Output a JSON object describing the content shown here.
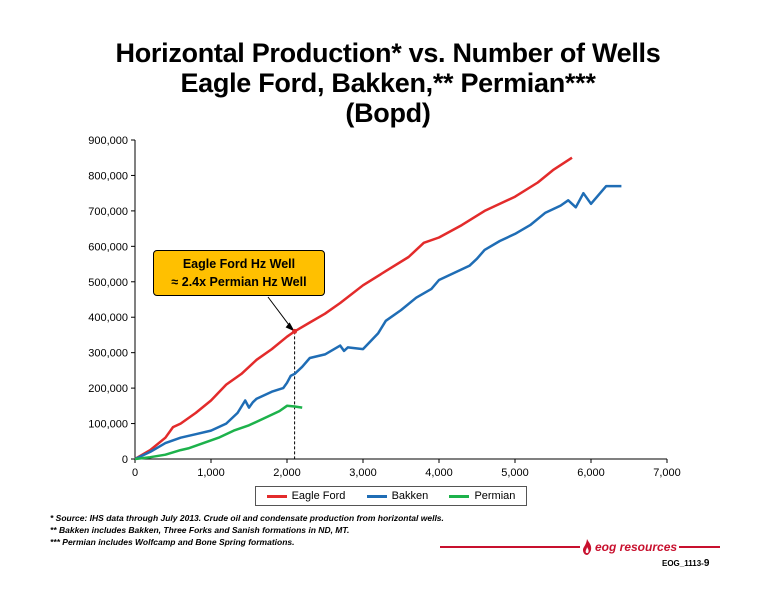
{
  "title": {
    "line1": "Horizontal Production* vs. Number of Wells",
    "line2": "Eagle Ford, Bakken,** Permian***",
    "line3": "(Bopd)"
  },
  "callout": {
    "line1": "Eagle Ford Hz Well",
    "line2": "≈ 2.4x Permian Hz Well"
  },
  "footnotes": [
    "* Source: IHS data through July 2013. Crude oil and condensate production from horizontal wells.",
    "** Bakken includes Bakken, Three Forks and Sanish formations in ND, MT.",
    "*** Permian includes Wolfcamp and Bone Spring formations."
  ],
  "logo": {
    "text": "eog resources",
    "icon": "flame-icon"
  },
  "doc_code": {
    "code": "EOG_1113-",
    "page": "9"
  },
  "chart_data": {
    "type": "line",
    "xlim": [
      0,
      7000
    ],
    "ylim": [
      0,
      900000
    ],
    "x_ticks": [
      0,
      1000,
      2000,
      3000,
      4000,
      5000,
      6000,
      7000
    ],
    "x_tick_labels": [
      "0",
      "1,000",
      "2,000",
      "3,000",
      "4,000",
      "5,000",
      "6,000",
      "7,000"
    ],
    "y_ticks": [
      0,
      100000,
      200000,
      300000,
      400000,
      500000,
      600000,
      700000,
      800000,
      900000
    ],
    "y_tick_labels": [
      "0",
      "100,000",
      "200,000",
      "300,000",
      "400,000",
      "500,000",
      "600,000",
      "700,000",
      "800,000",
      "900,000"
    ],
    "grid": false,
    "legend_position": "bottom",
    "reference_line_x": 2100,
    "highlight_point": {
      "x": 2100,
      "y": 360000
    },
    "series": [
      {
        "name": "Eagle Ford",
        "color": "#e32b2b",
        "x": [
          0,
          200,
          400,
          500,
          600,
          800,
          1000,
          1200,
          1400,
          1600,
          1800,
          2000,
          2100,
          2300,
          2500,
          2700,
          3000,
          3300,
          3600,
          3800,
          4000,
          4300,
          4600,
          5000,
          5300,
          5500,
          5750
        ],
        "y": [
          0,
          25000,
          60000,
          90000,
          100000,
          130000,
          165000,
          210000,
          240000,
          280000,
          310000,
          345000,
          360000,
          385000,
          410000,
          440000,
          490000,
          530000,
          570000,
          610000,
          625000,
          660000,
          700000,
          740000,
          780000,
          815000,
          850000
        ]
      },
      {
        "name": "Bakken",
        "color": "#1f6db5",
        "x": [
          0,
          200,
          400,
          600,
          800,
          1000,
          1200,
          1350,
          1450,
          1500,
          1550,
          1600,
          1800,
          1950,
          2000,
          2050,
          2100,
          2200,
          2300,
          2500,
          2700,
          2750,
          2800,
          3000,
          3200,
          3300,
          3500,
          3700,
          3900,
          4000,
          4200,
          4400,
          4500,
          4600,
          4800,
          5000,
          5200,
          5400,
          5600,
          5700,
          5800,
          5900,
          6000,
          6100,
          6200,
          6300,
          6400
        ],
        "y": [
          0,
          20000,
          45000,
          60000,
          70000,
          80000,
          100000,
          130000,
          165000,
          145000,
          160000,
          170000,
          190000,
          200000,
          215000,
          235000,
          240000,
          260000,
          285000,
          295000,
          320000,
          305000,
          315000,
          310000,
          355000,
          390000,
          420000,
          455000,
          480000,
          505000,
          525000,
          545000,
          565000,
          590000,
          615000,
          635000,
          660000,
          695000,
          715000,
          730000,
          710000,
          750000,
          720000,
          745000,
          770000,
          770000,
          770000
        ]
      },
      {
        "name": "Permian",
        "color": "#1db24b",
        "x": [
          0,
          200,
          400,
          600,
          700,
          900,
          1100,
          1300,
          1500,
          1700,
          1900,
          2000,
          2100,
          2200
        ],
        "y": [
          0,
          5000,
          12000,
          25000,
          30000,
          45000,
          60000,
          80000,
          95000,
          115000,
          135000,
          150000,
          148000,
          145000
        ]
      }
    ]
  }
}
